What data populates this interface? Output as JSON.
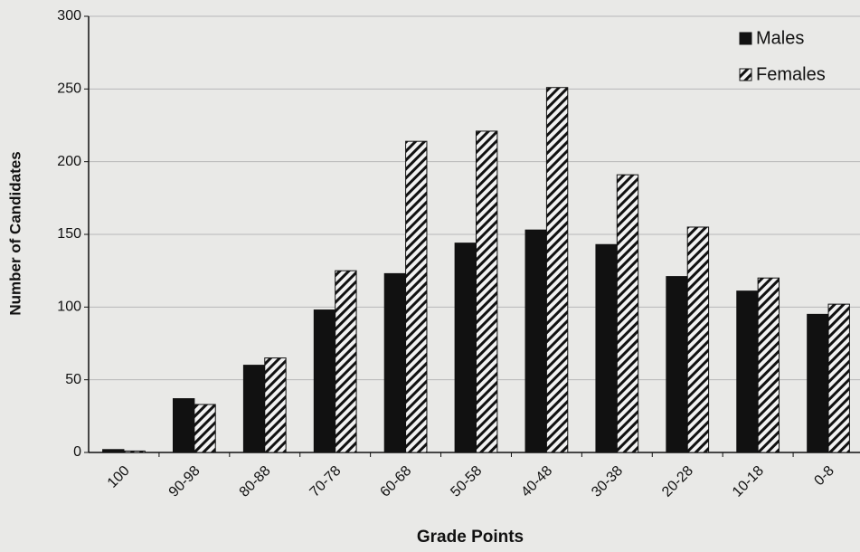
{
  "chart_data": {
    "type": "bar",
    "xlabel": "Grade Points",
    "ylabel": "Number of Candidates",
    "categories": [
      "100",
      "90-98",
      "80-88",
      "70-78",
      "60-68",
      "50-58",
      "40-48",
      "30-38",
      "20-28",
      "10-18",
      "0-8"
    ],
    "series": [
      {
        "name": "Males",
        "color": "#111111",
        "hatch": false,
        "values": [
          2,
          37,
          60,
          98,
          123,
          144,
          153,
          143,
          121,
          111,
          95
        ]
      },
      {
        "name": "Females",
        "color": "#111111",
        "hatch": true,
        "values": [
          1,
          33,
          65,
          125,
          214,
          221,
          251,
          191,
          155,
          120,
          102
        ]
      }
    ],
    "ylim": [
      0,
      300
    ],
    "yticks": [
      0,
      50,
      100,
      150,
      200,
      250,
      300
    ],
    "grid": true,
    "legend": "top-right"
  }
}
